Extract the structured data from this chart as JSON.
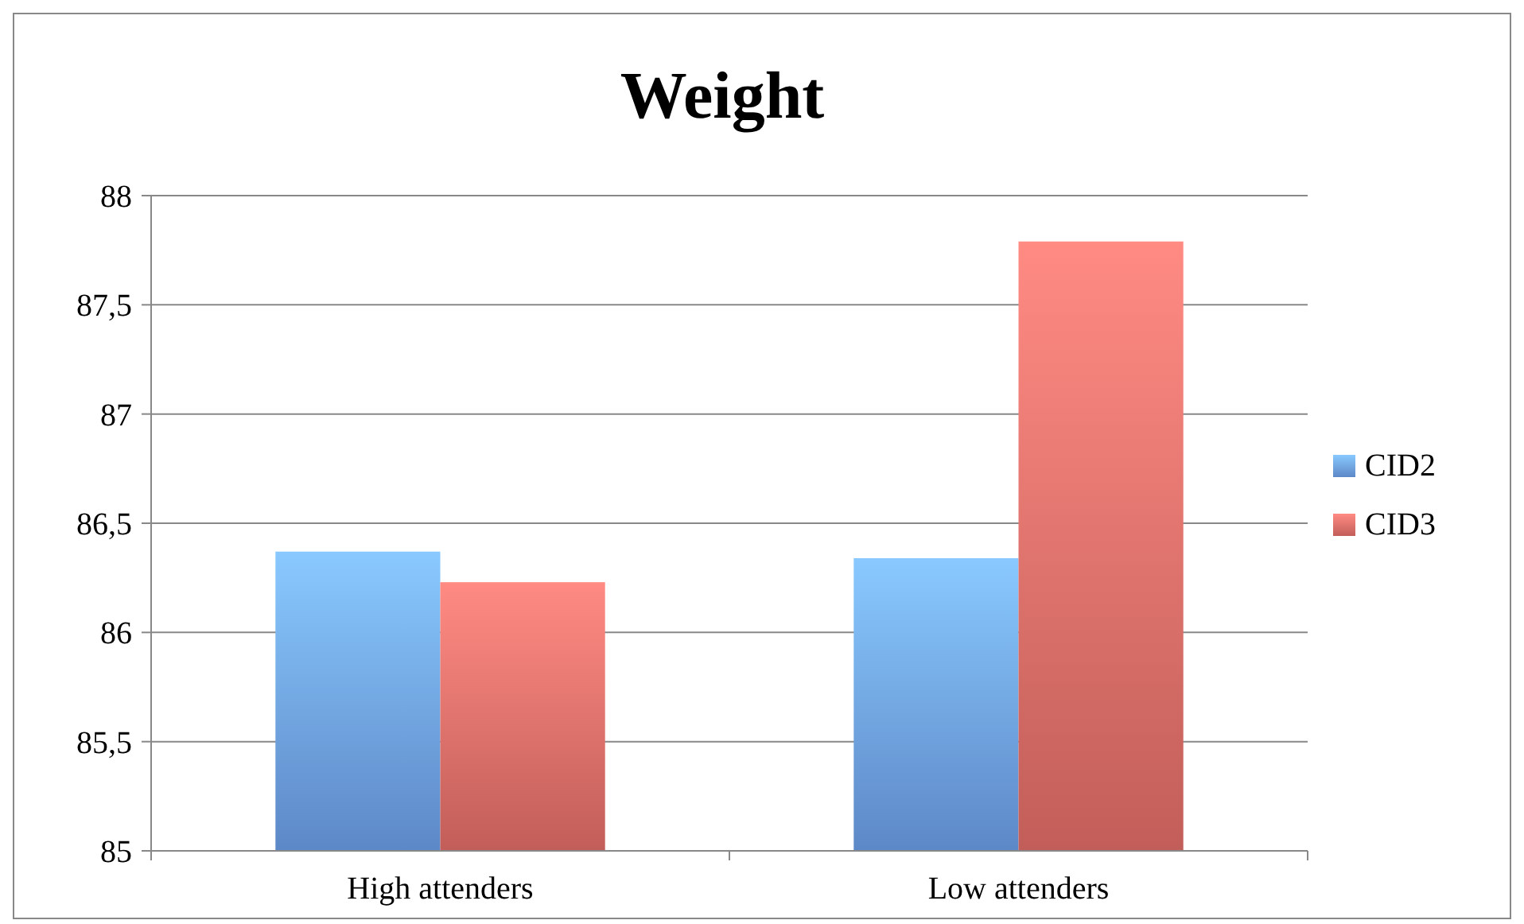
{
  "chart_data": {
    "type": "bar",
    "title": "Weight",
    "categories": [
      "High attenders",
      "Low attenders"
    ],
    "series": [
      {
        "name": "CID2",
        "color": "#6fa2ee",
        "values": [
          86.37,
          86.34
        ]
      },
      {
        "name": "CID3",
        "color": "#e8706a",
        "values": [
          86.23,
          87.79
        ]
      }
    ],
    "ylim": [
      85,
      88
    ],
    "yticks": [
      85,
      {
        "value": 85.5,
        "label": "85,5"
      },
      86,
      {
        "value": 86.5,
        "label": "86,5"
      },
      87,
      {
        "value": 87.5,
        "label": "87,5"
      },
      88
    ],
    "grid": "y",
    "legend": "right"
  }
}
